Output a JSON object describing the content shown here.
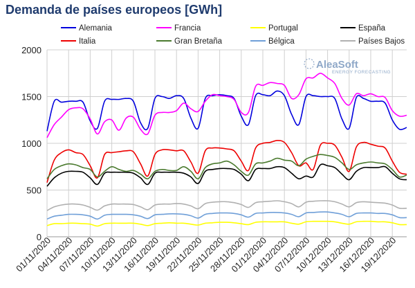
{
  "chart_data": {
    "type": "line",
    "title": "Demanda de países europeos [GWh]",
    "ylim": [
      0,
      2000
    ],
    "y_ticks": [
      0,
      500,
      1000,
      1500,
      2000
    ],
    "x_tick_labels": [
      "01/11/2020",
      "04/11/2020",
      "07/11/2020",
      "10/11/2020",
      "13/11/2020",
      "16/11/2020",
      "19/11/2020",
      "22/11/2020",
      "25/11/2020",
      "28/11/2020",
      "01/12/2020",
      "04/12/2020",
      "07/12/2020",
      "10/12/2020",
      "13/12/2020",
      "16/12/2020",
      "19/12/2020"
    ],
    "x": [
      "01/11/2020",
      "02/11/2020",
      "03/11/2020",
      "04/11/2020",
      "05/11/2020",
      "06/11/2020",
      "07/11/2020",
      "08/11/2020",
      "09/11/2020",
      "10/11/2020",
      "11/11/2020",
      "12/11/2020",
      "13/11/2020",
      "14/11/2020",
      "15/11/2020",
      "16/11/2020",
      "17/11/2020",
      "18/11/2020",
      "19/11/2020",
      "20/11/2020",
      "21/11/2020",
      "22/11/2020",
      "23/11/2020",
      "24/11/2020",
      "25/11/2020",
      "26/11/2020",
      "27/11/2020",
      "28/11/2020",
      "29/11/2020",
      "30/11/2020",
      "01/12/2020",
      "02/12/2020",
      "03/12/2020",
      "04/12/2020",
      "05/12/2020",
      "06/12/2020",
      "07/12/2020",
      "08/12/2020",
      "09/12/2020",
      "10/12/2020",
      "11/12/2020",
      "12/12/2020",
      "13/12/2020",
      "14/12/2020",
      "15/12/2020",
      "16/12/2020",
      "17/12/2020",
      "18/12/2020",
      "19/12/2020",
      "20/12/2020",
      "21/12/2020"
    ],
    "grid": true,
    "legend_position": "top",
    "series": [
      {
        "name": "Alemania",
        "color": "#0000dd",
        "values": [
          1130,
          1450,
          1440,
          1450,
          1450,
          1440,
          1240,
          1160,
          1450,
          1470,
          1470,
          1480,
          1450,
          1220,
          1160,
          1480,
          1500,
          1480,
          1510,
          1480,
          1270,
          1160,
          1480,
          1510,
          1520,
          1510,
          1480,
          1290,
          1200,
          1510,
          1520,
          1510,
          1560,
          1510,
          1310,
          1200,
          1500,
          1510,
          1500,
          1500,
          1480,
          1260,
          1160,
          1490,
          1480,
          1450,
          1450,
          1430,
          1250,
          1150,
          1170
        ]
      },
      {
        "name": "Francia",
        "color": "#ff00ff",
        "values": [
          1060,
          1200,
          1280,
          1360,
          1380,
          1370,
          1260,
          1100,
          1230,
          1250,
          1140,
          1270,
          1280,
          1150,
          1100,
          1300,
          1330,
          1330,
          1350,
          1430,
          1370,
          1340,
          1450,
          1520,
          1510,
          1500,
          1470,
          1330,
          1330,
          1610,
          1620,
          1650,
          1640,
          1620,
          1480,
          1520,
          1690,
          1700,
          1750,
          1700,
          1640,
          1480,
          1410,
          1530,
          1510,
          1530,
          1500,
          1490,
          1350,
          1290,
          1300
        ]
      },
      {
        "name": "Portugal",
        "color": "#ffff00",
        "values": [
          120,
          140,
          140,
          145,
          145,
          140,
          135,
          115,
          140,
          145,
          145,
          145,
          145,
          135,
          120,
          140,
          145,
          150,
          145,
          145,
          135,
          125,
          145,
          150,
          155,
          155,
          150,
          140,
          130,
          155,
          160,
          160,
          160,
          160,
          145,
          135,
          160,
          165,
          165,
          165,
          160,
          145,
          135,
          160,
          165,
          165,
          160,
          160,
          150,
          130,
          130
        ]
      },
      {
        "name": "España",
        "color": "#000000",
        "values": [
          540,
          630,
          680,
          700,
          700,
          690,
          630,
          560,
          680,
          690,
          690,
          690,
          680,
          630,
          560,
          680,
          690,
          690,
          690,
          680,
          640,
          570,
          700,
          720,
          730,
          730,
          720,
          670,
          600,
          720,
          730,
          730,
          750,
          740,
          680,
          620,
          650,
          640,
          770,
          760,
          740,
          670,
          610,
          700,
          740,
          740,
          740,
          750,
          680,
          620,
          610
        ]
      },
      {
        "name": "Italia",
        "color": "#ee0000",
        "values": [
          580,
          820,
          900,
          930,
          900,
          880,
          760,
          630,
          880,
          900,
          910,
          920,
          910,
          780,
          650,
          880,
          930,
          930,
          920,
          920,
          800,
          680,
          920,
          950,
          950,
          940,
          920,
          810,
          710,
          950,
          1000,
          1010,
          1030,
          1010,
          900,
          760,
          790,
          720,
          980,
          1000,
          980,
          850,
          700,
          960,
          1010,
          990,
          970,
          950,
          810,
          690,
          670
        ]
      },
      {
        "name": "Gran Bretaña",
        "color": "#4a7a2e",
        "values": [
          620,
          720,
          760,
          780,
          770,
          740,
          720,
          640,
          700,
          750,
          720,
          700,
          710,
          670,
          620,
          700,
          720,
          710,
          710,
          750,
          700,
          620,
          740,
          780,
          790,
          810,
          770,
          700,
          660,
          780,
          790,
          810,
          840,
          820,
          810,
          760,
          830,
          860,
          880,
          870,
          850,
          790,
          720,
          770,
          790,
          800,
          790,
          780,
          720,
          640,
          660
        ]
      },
      {
        "name": "Bélgica",
        "color": "#6f9fd8",
        "values": [
          190,
          220,
          230,
          240,
          240,
          235,
          220,
          190,
          230,
          240,
          240,
          240,
          235,
          220,
          195,
          235,
          240,
          245,
          245,
          240,
          225,
          200,
          240,
          250,
          255,
          255,
          250,
          235,
          210,
          250,
          255,
          260,
          260,
          255,
          240,
          215,
          255,
          260,
          265,
          265,
          255,
          240,
          215,
          250,
          255,
          255,
          250,
          250,
          235,
          205,
          205
        ]
      },
      {
        "name": "Países Bajos",
        "color": "#b0b0b0",
        "values": [
          280,
          320,
          340,
          350,
          350,
          340,
          315,
          285,
          330,
          350,
          350,
          350,
          345,
          320,
          290,
          340,
          350,
          350,
          355,
          350,
          330,
          300,
          355,
          370,
          375,
          375,
          365,
          345,
          315,
          365,
          375,
          380,
          385,
          375,
          355,
          320,
          370,
          380,
          385,
          385,
          375,
          350,
          320,
          365,
          375,
          370,
          365,
          360,
          340,
          305,
          305
        ]
      }
    ]
  },
  "logo": {
    "name": "AleaSoft",
    "tagline": "ENERGY FORECASTING"
  }
}
